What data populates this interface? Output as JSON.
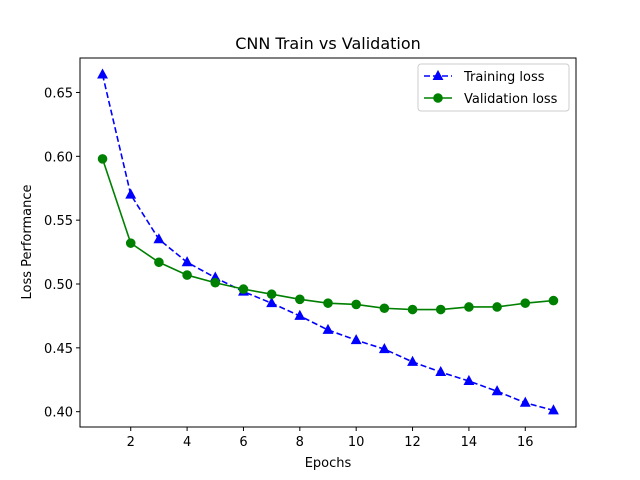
{
  "chart_data": {
    "type": "line",
    "title": "CNN Train vs Validation",
    "xlabel": "Epochs",
    "ylabel": "Loss Performance",
    "xlim": [
      0.2,
      17.8
    ],
    "ylim": [
      0.388,
      0.677
    ],
    "xticks": [
      2,
      4,
      6,
      8,
      10,
      12,
      14,
      16
    ],
    "yticks": [
      0.4,
      0.45,
      0.5,
      0.55,
      0.6,
      0.65
    ],
    "grid": false,
    "legend_position": "top-right",
    "x": [
      1,
      2,
      3,
      4,
      5,
      6,
      7,
      8,
      9,
      10,
      11,
      12,
      13,
      14,
      15,
      16,
      17
    ],
    "series": [
      {
        "name": "Training loss",
        "color": "#0000ff",
        "linestyle": "dashed",
        "marker": "triangle",
        "values": [
          0.664,
          0.57,
          0.535,
          0.517,
          0.505,
          0.494,
          0.485,
          0.475,
          0.464,
          0.456,
          0.449,
          0.439,
          0.431,
          0.424,
          0.416,
          0.407,
          0.401
        ]
      },
      {
        "name": "Validation loss",
        "color": "#008000",
        "linestyle": "solid",
        "marker": "circle",
        "values": [
          0.598,
          0.532,
          0.517,
          0.507,
          0.501,
          0.496,
          0.492,
          0.488,
          0.485,
          0.484,
          0.481,
          0.48,
          0.48,
          0.482,
          0.482,
          0.485,
          0.487
        ]
      }
    ]
  }
}
